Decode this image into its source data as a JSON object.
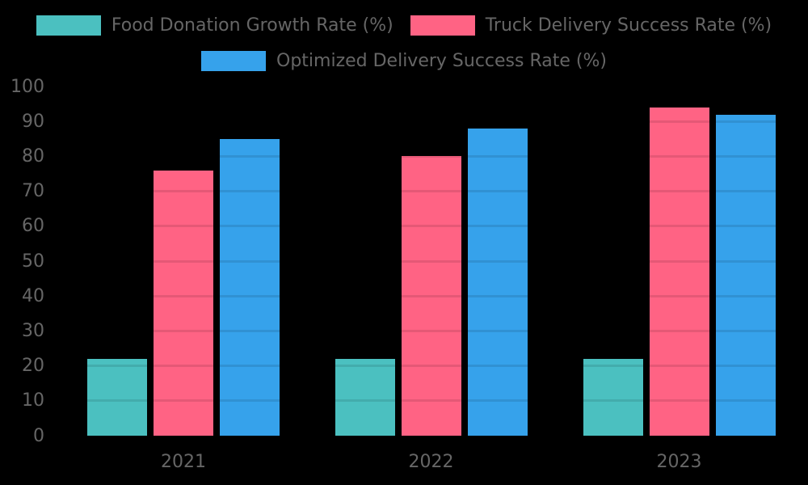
{
  "chart_data": {
    "type": "bar",
    "title": "",
    "xlabel": "",
    "ylabel": "",
    "categories": [
      "2021",
      "2022",
      "2023"
    ],
    "series": [
      {
        "name": "Food Donation Growth Rate (%)",
        "color": "#4BC0C0",
        "values": [
          22,
          22,
          22
        ]
      },
      {
        "name": "Truck Delivery Success Rate (%)",
        "color": "#FF6384",
        "values": [
          76,
          80,
          94
        ]
      },
      {
        "name": "Optimized Delivery Success Rate (%)",
        "color": "#36A2EB",
        "values": [
          85,
          88,
          92
        ]
      }
    ],
    "ylim": [
      0,
      100
    ],
    "yticks": [
      0,
      10,
      20,
      30,
      40,
      50,
      60,
      70,
      80,
      90,
      100
    ],
    "grid": true,
    "gridline_color": "rgba(0,0,0,0.10)",
    "legend_position": "top",
    "legend_rows": [
      [
        0,
        1
      ],
      [
        2
      ]
    ],
    "text_color": "#666666",
    "background": "#000000"
  }
}
